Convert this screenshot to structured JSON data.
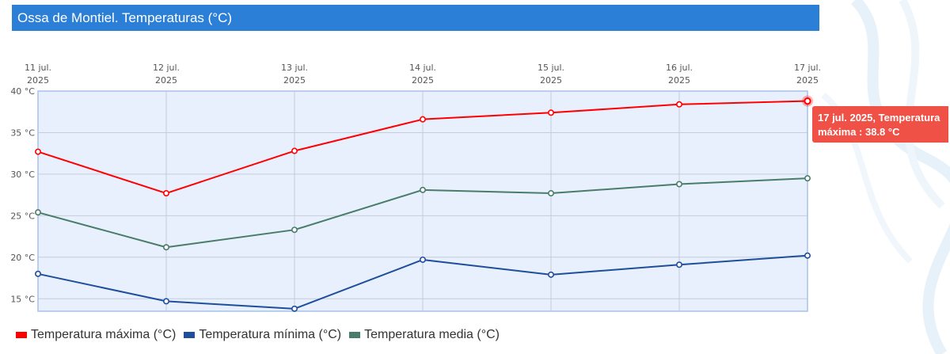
{
  "title": "Ossa de Montiel. Temperaturas (°C)",
  "chart_data": {
    "type": "line",
    "title": "Ossa de Montiel. Temperaturas (°C)",
    "xlabel": "",
    "ylabel": "",
    "categories": [
      [
        "11 jul.",
        "2025"
      ],
      [
        "12 jul.",
        "2025"
      ],
      [
        "13 jul.",
        "2025"
      ],
      [
        "14 jul.",
        "2025"
      ],
      [
        "15 jul.",
        "2025"
      ],
      [
        "16 jul.",
        "2025"
      ],
      [
        "17 jul.",
        "2025"
      ]
    ],
    "ylim": [
      13.5,
      40
    ],
    "yticks": [
      15,
      20,
      25,
      30,
      35,
      40
    ],
    "ytick_labels": [
      "15 °C",
      "20 °C",
      "25 °C",
      "30 °C",
      "35 °C",
      "40 °C"
    ],
    "grid": true,
    "legend_position": "bottom-left",
    "series": [
      {
        "name": "Temperatura máxima (°C)",
        "color": "#ff0000",
        "values": [
          32.7,
          27.7,
          32.8,
          36.6,
          37.4,
          38.4,
          38.8
        ]
      },
      {
        "name": "Temperatura mínima (°C)",
        "color": "#1f4e9c",
        "values": [
          18.0,
          14.7,
          13.8,
          19.7,
          17.9,
          19.1,
          20.2
        ]
      },
      {
        "name": "Temperatura media (°C)",
        "color": "#4a7c6a",
        "values": [
          25.4,
          21.2,
          23.3,
          28.1,
          27.7,
          28.8,
          29.5
        ]
      }
    ],
    "tooltip": {
      "line1": "17 jul. 2025, Temperatura",
      "line2": "máxima : 38.8 °C"
    }
  }
}
